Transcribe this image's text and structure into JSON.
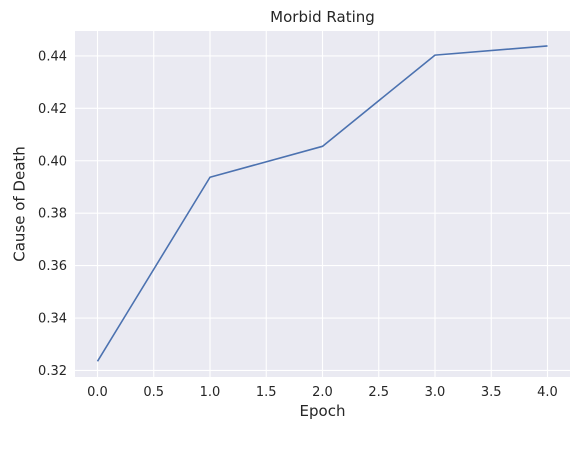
{
  "chart_data": {
    "type": "line",
    "title": "Morbid Rating",
    "xlabel": "Epoch",
    "ylabel": "Cause of Death",
    "x": [
      0,
      1,
      2,
      3,
      4
    ],
    "series": [
      {
        "values": [
          0.3235,
          0.3937,
          0.4055,
          0.4403,
          0.4438
        ],
        "color": "#4c72b0"
      }
    ],
    "xlim": [
      -0.2,
      4.2
    ],
    "ylim": [
      0.3175,
      0.4495
    ],
    "x_ticks": [
      "0.0",
      "0.5",
      "1.0",
      "1.5",
      "2.0",
      "2.5",
      "3.0",
      "3.5",
      "4.0"
    ],
    "y_ticks": [
      "0.32",
      "0.34",
      "0.36",
      "0.38",
      "0.40",
      "0.42",
      "0.44"
    ],
    "grid": true,
    "background": "#eaeaf2",
    "grid_color": "#ffffff"
  }
}
